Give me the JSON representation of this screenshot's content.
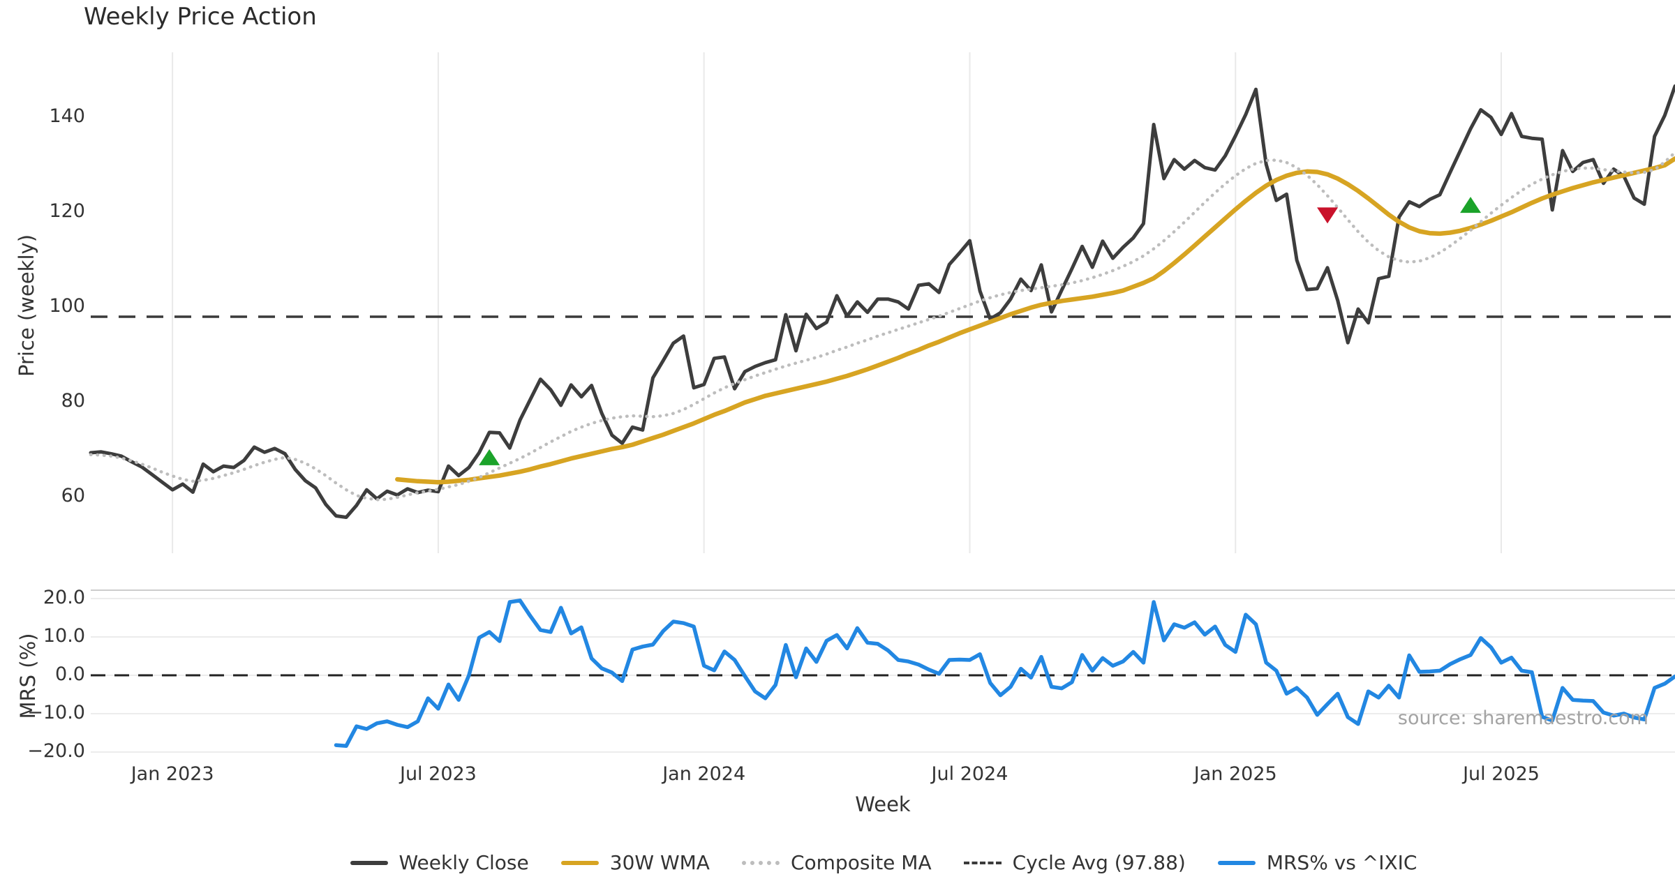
{
  "title": "Weekly Price Action",
  "source_note": "source: sharemaestro.com",
  "colors": {
    "close": "#3d3d3d",
    "wma": "#D7A422",
    "composite": "#bdbdbd",
    "cycle_avg": "#3a3a3a",
    "mrs": "#2287e2",
    "buy_marker": "#1ba32a",
    "sell_marker": "#c9122b",
    "grid": "#e9e9e9",
    "panel_spine": "#cccccc"
  },
  "chart_data": {
    "type": "line",
    "title": "Weekly Price Action",
    "xlabel": "Week",
    "x_axis": {
      "tick_labels": [
        "Jan 2023",
        "Jul 2023",
        "Jan 2024",
        "Jul 2024",
        "Jan 2025",
        "Jul 2025"
      ],
      "tick_weeks": [
        8,
        34,
        60,
        86,
        112,
        138
      ],
      "total_weeks": 155
    },
    "panels": [
      {
        "ylabel": "Price (weekly)",
        "ylim": [
          47.5,
          153.5
        ],
        "yticks": [
          140,
          120,
          100,
          80,
          60
        ],
        "ytick_labels": [
          "140",
          "120",
          "100",
          "80",
          "60"
        ],
        "grid": "vertical"
      },
      {
        "ylabel": "MRS (%)",
        "ylim": [
          -21.5,
          22.5
        ],
        "yticks": [
          20,
          10,
          0,
          -10,
          -20
        ],
        "ytick_labels": [
          "20.0",
          "10.0",
          "0.0",
          "−10.0",
          "−20.0"
        ],
        "grid": "horizontal",
        "zero_line": 0.0
      }
    ],
    "cycle_avg_value": 97.88,
    "series": [
      {
        "name": "Weekly Close",
        "panel": 0,
        "style": "solid",
        "color": "#3d3d3d",
        "lw": 5,
        "start_week": 0,
        "values": [
          69.2,
          69.4,
          69.0,
          68.5,
          67.3,
          66.2,
          64.6,
          63.0,
          61.4,
          62.6,
          60.9,
          66.8,
          65.2,
          66.4,
          66.1,
          67.6,
          70.4,
          69.3,
          70.1,
          69.0,
          65.7,
          63.3,
          61.8,
          58.3,
          55.9,
          55.6,
          58.1,
          61.4,
          59.5,
          61.1,
          60.3,
          61.6,
          60.8,
          61.3,
          61.0,
          66.4,
          64.4,
          66.1,
          69.2,
          73.5,
          73.4,
          70.2,
          76.1,
          80.4,
          84.7,
          82.5,
          79.2,
          83.5,
          81.0,
          83.4,
          77.5,
          72.9,
          71.2,
          74.6,
          74.0,
          85.0,
          88.6,
          92.3,
          93.8,
          82.9,
          83.6,
          89.1,
          89.4,
          82.7,
          86.3,
          87.4,
          88.2,
          88.8,
          98.3,
          90.7,
          98.4,
          95.4,
          96.7,
          102.3,
          98.0,
          101.0,
          98.8,
          101.6,
          101.6,
          101.0,
          99.5,
          104.5,
          104.8,
          103.0,
          108.9,
          111.3,
          113.9,
          103.3,
          97.4,
          98.7,
          101.6,
          105.8,
          103.4,
          108.8,
          98.9,
          103.5,
          108.0,
          112.7,
          108.3,
          113.8,
          110.2,
          112.5,
          114.5,
          117.5,
          138.4,
          127.0,
          131.0,
          129.0,
          130.8,
          129.3,
          128.8,
          131.8,
          136.0,
          140.5,
          145.8,
          130.0,
          122.4,
          123.7,
          109.8,
          103.6,
          103.8,
          108.2,
          101.3,
          92.4,
          99.5,
          96.6,
          105.9,
          106.4,
          118.9,
          122.1,
          121.1,
          122.6,
          123.6,
          128.3,
          132.9,
          137.5,
          141.5,
          139.9,
          136.3,
          140.7,
          135.9,
          135.5,
          135.3,
          120.4,
          132.9,
          128.5,
          130.4,
          131.0,
          126.0,
          129.0,
          127.5,
          122.9,
          121.6,
          135.9,
          140.3,
          146.5
        ]
      },
      {
        "name": "30W WMA",
        "panel": 0,
        "style": "solid",
        "color": "#D7A422",
        "lw": 6.5,
        "start_week": 30,
        "values": [
          63.6,
          63.4,
          63.2,
          63.1,
          63.0,
          63.1,
          63.3,
          63.5,
          63.8,
          64.1,
          64.4,
          64.8,
          65.2,
          65.7,
          66.3,
          66.8,
          67.4,
          68.0,
          68.5,
          69.0,
          69.5,
          70.0,
          70.4,
          70.9,
          71.6,
          72.3,
          73.0,
          73.8,
          74.6,
          75.4,
          76.3,
          77.2,
          78.0,
          78.9,
          79.8,
          80.5,
          81.2,
          81.7,
          82.2,
          82.7,
          83.2,
          83.7,
          84.2,
          84.8,
          85.4,
          86.1,
          86.8,
          87.6,
          88.4,
          89.2,
          90.1,
          90.9,
          91.8,
          92.6,
          93.5,
          94.4,
          95.2,
          96.0,
          96.8,
          97.6,
          98.4,
          99.1,
          99.8,
          100.4,
          100.8,
          101.2,
          101.5,
          101.8,
          102.1,
          102.5,
          102.9,
          103.4,
          104.2,
          105.0,
          106.0,
          107.5,
          109.2,
          111.0,
          112.9,
          114.8,
          116.7,
          118.6,
          120.5,
          122.3,
          124.0,
          125.5,
          126.7,
          127.6,
          128.2,
          128.5,
          128.4,
          127.9,
          127.0,
          125.8,
          124.4,
          122.8,
          121.1,
          119.4,
          117.9,
          116.7,
          115.9,
          115.5,
          115.4,
          115.6,
          116.0,
          116.6,
          117.3,
          118.1,
          119.0,
          119.9,
          120.9,
          121.9,
          122.8,
          123.6,
          124.3,
          125.0,
          125.6,
          126.2,
          126.7,
          127.2,
          127.7,
          128.2,
          128.7,
          129.2,
          129.8,
          131.2
        ]
      },
      {
        "name": "Composite MA",
        "panel": 0,
        "style": "dotted",
        "color": "#bdbdbd",
        "lw": 4.5,
        "start_week": 0,
        "values": [
          68.8,
          68.7,
          68.5,
          68.1,
          67.5,
          66.8,
          66.0,
          65.1,
          64.3,
          63.6,
          63.2,
          63.4,
          63.8,
          64.4,
          65.0,
          65.7,
          66.5,
          67.2,
          67.8,
          68.2,
          67.8,
          67.0,
          65.8,
          64.4,
          62.8,
          61.4,
          60.2,
          59.6,
          59.3,
          59.4,
          59.8,
          60.3,
          60.8,
          61.1,
          61.5,
          62.0,
          62.5,
          63.2,
          64.0,
          65.0,
          66.0,
          67.0,
          68.0,
          69.1,
          70.3,
          71.5,
          72.6,
          73.7,
          74.6,
          75.4,
          76.0,
          76.5,
          76.8,
          77.0,
          76.9,
          76.8,
          77.0,
          77.5,
          78.3,
          79.4,
          80.6,
          81.8,
          82.9,
          83.8,
          84.6,
          85.4,
          86.1,
          86.8,
          87.5,
          88.1,
          88.7,
          89.3,
          90.0,
          90.8,
          91.5,
          92.3,
          93.0,
          93.8,
          94.5,
          95.2,
          95.9,
          96.6,
          97.3,
          98.0,
          98.8,
          99.6,
          100.4,
          101.2,
          101.9,
          102.5,
          103.0,
          103.4,
          103.7,
          104.0,
          104.3,
          104.6,
          105.0,
          105.5,
          106.1,
          106.8,
          107.6,
          108.5,
          109.5,
          110.7,
          112.2,
          113.9,
          115.8,
          117.8,
          119.9,
          122.0,
          124.0,
          125.9,
          127.6,
          129.1,
          130.2,
          130.8,
          130.9,
          130.4,
          129.3,
          127.7,
          125.7,
          123.4,
          120.9,
          118.3,
          115.8,
          113.6,
          111.8,
          110.5,
          109.7,
          109.4,
          109.6,
          110.3,
          111.4,
          112.8,
          114.4,
          116.1,
          117.9,
          119.7,
          121.4,
          123.0,
          124.5,
          125.8,
          126.9,
          127.8,
          128.5,
          129.0,
          129.2,
          129.2,
          128.9,
          128.6,
          128.4,
          128.2,
          128.3,
          128.9,
          130.5,
          132.5
        ]
      },
      {
        "name": "Cycle Avg (97.88)",
        "panel": 0,
        "style": "dashed",
        "color": "#3a3a3a",
        "lw": 3.4,
        "hline": 97.88
      },
      {
        "name": "MRS% vs ^IXIC",
        "panel": 1,
        "style": "solid",
        "color": "#2287e2",
        "lw": 5.5,
        "start_week": 24,
        "values": [
          -18.2,
          -18.4,
          -13.3,
          -14.0,
          -12.5,
          -12.0,
          -12.9,
          -13.5,
          -12.0,
          -6.0,
          -8.7,
          -2.4,
          -6.4,
          0.0,
          9.8,
          11.3,
          8.9,
          19.1,
          19.5,
          15.5,
          11.8,
          11.3,
          17.6,
          10.9,
          12.5,
          4.4,
          1.8,
          0.7,
          -1.5,
          6.7,
          7.5,
          8.0,
          11.5,
          14.0,
          13.6,
          12.7,
          2.5,
          1.3,
          6.2,
          4.0,
          -0.2,
          -4.2,
          -6.0,
          -2.5,
          7.9,
          -0.5,
          7.0,
          3.5,
          9.0,
          10.5,
          7.0,
          12.3,
          8.5,
          8.2,
          6.5,
          4.0,
          3.6,
          2.8,
          1.5,
          0.4,
          4.0,
          4.1,
          4.0,
          5.5,
          -2.0,
          -5.2,
          -3.0,
          1.7,
          -0.6,
          4.8,
          -3.0,
          -3.4,
          -1.8,
          5.3,
          1.2,
          4.5,
          2.5,
          3.6,
          6.1,
          3.3,
          19.1,
          9.1,
          13.3,
          12.4,
          13.8,
          10.6,
          12.7,
          7.9,
          6.1,
          15.8,
          13.3,
          3.3,
          1.2,
          -4.8,
          -3.3,
          -5.8,
          -10.3,
          -7.5,
          -4.8,
          -10.9,
          -12.7,
          -4.2,
          -5.8,
          -2.7,
          -5.8,
          5.2,
          0.9,
          1.0,
          1.2,
          2.9,
          4.2,
          5.3,
          9.7,
          7.3,
          3.3,
          4.6,
          1.2,
          0.8,
          -10.8,
          -11.8,
          -3.3,
          -6.4,
          -6.6,
          -6.7,
          -9.7,
          -10.5,
          -10.0,
          -11.0,
          -11.5,
          -3.3,
          -2.2,
          -0.3
        ]
      }
    ],
    "markers": {
      "buy": [
        {
          "week": 39,
          "price": 68.2
        },
        {
          "week": 135,
          "price": 121.4
        }
      ],
      "sell": [
        {
          "week": 121,
          "price": 119.3
        }
      ]
    },
    "legend_position": "bottom-center",
    "grid": true
  },
  "legend": {
    "items": [
      {
        "label": "Weekly Close",
        "style": "solid",
        "color": "#3d3d3d"
      },
      {
        "label": "30W WMA",
        "style": "solid",
        "color": "#D7A422"
      },
      {
        "label": "Composite MA",
        "style": "dotted",
        "color": "#bdbdbd"
      },
      {
        "label": "Cycle Avg (97.88)",
        "style": "dashed",
        "color": "#3a3a3a"
      },
      {
        "label": "MRS% vs ^IXIC",
        "style": "solid",
        "color": "#2287e2"
      }
    ]
  }
}
